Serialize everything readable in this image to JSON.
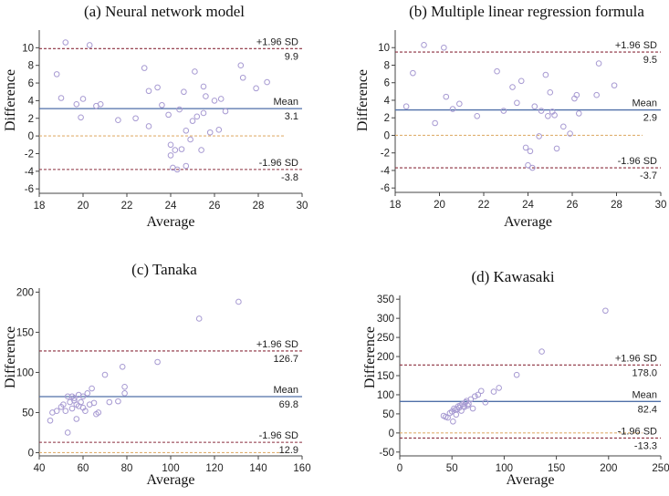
{
  "colors": {
    "mean_line": "#4f6fa8",
    "sd_line": "#8b2f3f",
    "zero_line": "#e0b070",
    "points": "#a79ad2",
    "axis": "#444444"
  },
  "chart_data": [
    {
      "type": "scatter",
      "title": "(a) Neural network model",
      "xlabel": "Average",
      "ylabel": "Difference",
      "xlim": [
        18,
        30
      ],
      "ylim": [
        -6.5,
        12
      ],
      "xticks": [
        18,
        20,
        22,
        24,
        26,
        28,
        30
      ],
      "yticks": [
        -6,
        -4,
        -2,
        0,
        2,
        4,
        6,
        8,
        10
      ],
      "mean": 3.1,
      "upper": 9.9,
      "lower": -3.8,
      "labels": {
        "upper": "+1.96 SD",
        "upper_val": "9.9",
        "mean": "Mean",
        "mean_val": "3.1",
        "lower": "-1.96 SD",
        "lower_val": "-3.8"
      },
      "points": [
        [
          19.2,
          10.6
        ],
        [
          18.8,
          7.0
        ],
        [
          19.0,
          4.3
        ],
        [
          19.7,
          3.6
        ],
        [
          19.9,
          2.1
        ],
        [
          20.0,
          4.2
        ],
        [
          20.3,
          10.3
        ],
        [
          20.6,
          3.4
        ],
        [
          20.8,
          3.6
        ],
        [
          21.6,
          1.8
        ],
        [
          22.4,
          2.0
        ],
        [
          22.8,
          7.7
        ],
        [
          23.0,
          5.1
        ],
        [
          23.0,
          1.1
        ],
        [
          23.4,
          5.5
        ],
        [
          23.6,
          3.5
        ],
        [
          23.9,
          2.4
        ],
        [
          24.0,
          -1.0
        ],
        [
          24.0,
          -2.2
        ],
        [
          24.1,
          -3.6
        ],
        [
          24.2,
          -1.6
        ],
        [
          24.3,
          -3.8
        ],
        [
          24.4,
          3.0
        ],
        [
          24.5,
          -1.5
        ],
        [
          24.6,
          5.0
        ],
        [
          24.7,
          -3.4
        ],
        [
          24.7,
          0.6
        ],
        [
          24.9,
          -0.4
        ],
        [
          25.0,
          1.7
        ],
        [
          25.1,
          7.3
        ],
        [
          25.2,
          2.2
        ],
        [
          25.4,
          -1.6
        ],
        [
          25.5,
          5.6
        ],
        [
          25.6,
          4.5
        ],
        [
          25.8,
          0.4
        ],
        [
          26.0,
          4.0
        ],
        [
          26.3,
          4.2
        ],
        [
          26.5,
          2.8
        ],
        [
          27.2,
          8.0
        ],
        [
          27.3,
          6.6
        ],
        [
          27.9,
          5.4
        ],
        [
          28.4,
          6.1
        ],
        [
          26.2,
          0.7
        ],
        [
          25.5,
          2.6
        ]
      ]
    },
    {
      "type": "scatter",
      "title": "(b) Multiple linear regression formula",
      "xlabel": "Average",
      "ylabel": "Difference",
      "xlim": [
        18,
        30
      ],
      "ylim": [
        -6.5,
        12
      ],
      "xticks": [
        18,
        20,
        22,
        24,
        26,
        28,
        30
      ],
      "yticks": [
        -6,
        -4,
        -2,
        0,
        2,
        4,
        6,
        8,
        10
      ],
      "mean": 2.9,
      "upper": 9.5,
      "lower": -3.7,
      "labels": {
        "upper": "+1.96 SD",
        "upper_val": "9.5",
        "mean": "Mean",
        "mean_val": "2.9",
        "lower": "-1.96 SD",
        "lower_val": "-3.7"
      },
      "points": [
        [
          18.5,
          3.3
        ],
        [
          18.8,
          7.1
        ],
        [
          19.3,
          10.3
        ],
        [
          19.8,
          1.4
        ],
        [
          20.2,
          10.0
        ],
        [
          20.3,
          4.4
        ],
        [
          20.6,
          3.0
        ],
        [
          20.9,
          3.6
        ],
        [
          21.7,
          2.2
        ],
        [
          22.6,
          7.3
        ],
        [
          22.9,
          2.8
        ],
        [
          23.3,
          5.5
        ],
        [
          23.5,
          3.7
        ],
        [
          23.7,
          6.2
        ],
        [
          23.9,
          -1.4
        ],
        [
          24.0,
          -3.4
        ],
        [
          24.1,
          -1.8
        ],
        [
          24.2,
          -3.7
        ],
        [
          24.3,
          3.3
        ],
        [
          24.5,
          -0.1
        ],
        [
          24.6,
          2.8
        ],
        [
          24.8,
          6.9
        ],
        [
          24.9,
          2.2
        ],
        [
          25.0,
          4.9
        ],
        [
          25.1,
          2.7
        ],
        [
          25.3,
          -1.5
        ],
        [
          25.6,
          1.0
        ],
        [
          25.9,
          0.2
        ],
        [
          26.2,
          4.6
        ],
        [
          26.3,
          2.5
        ],
        [
          27.2,
          8.2
        ],
        [
          27.1,
          4.6
        ],
        [
          27.9,
          5.7
        ],
        [
          26.1,
          4.2
        ],
        [
          25.2,
          2.3
        ]
      ]
    },
    {
      "type": "scatter",
      "title": "(c) Tanaka",
      "xlabel": "Average",
      "ylabel": "Difference",
      "xlim": [
        40,
        160
      ],
      "ylim": [
        -4,
        205
      ],
      "xticks": [
        40,
        60,
        80,
        100,
        120,
        140,
        160
      ],
      "yticks": [
        0,
        50,
        100,
        150,
        200
      ],
      "mean": 69.8,
      "upper": 126.7,
      "lower": 12.9,
      "labels": {
        "upper": "+1.96 SD",
        "upper_val": "126.7",
        "mean": "Mean",
        "mean_val": "69.8",
        "lower": "-1.96 SD",
        "lower_val": "12.9"
      },
      "points": [
        [
          45,
          40
        ],
        [
          46,
          50
        ],
        [
          48,
          52
        ],
        [
          50,
          57
        ],
        [
          51,
          60
        ],
        [
          52,
          52
        ],
        [
          53,
          70
        ],
        [
          53,
          25
        ],
        [
          54,
          63
        ],
        [
          55,
          55
        ],
        [
          55,
          70
        ],
        [
          56,
          65
        ],
        [
          57,
          60
        ],
        [
          57,
          42
        ],
        [
          58,
          72
        ],
        [
          59,
          63
        ],
        [
          60,
          70
        ],
        [
          60,
          56
        ],
        [
          61,
          52
        ],
        [
          62,
          74
        ],
        [
          63,
          60
        ],
        [
          64,
          80
        ],
        [
          65,
          62
        ],
        [
          66,
          48
        ],
        [
          67,
          50
        ],
        [
          70,
          97
        ],
        [
          72,
          63
        ],
        [
          76,
          64
        ],
        [
          78,
          107
        ],
        [
          79,
          82
        ],
        [
          79,
          74
        ],
        [
          94,
          113
        ],
        [
          113,
          167
        ],
        [
          131,
          188
        ],
        [
          56,
          68
        ],
        [
          58,
          58
        ]
      ]
    },
    {
      "type": "scatter",
      "title": "(d) Kawasaki",
      "xlabel": "Average",
      "ylabel": "Difference",
      "xlim": [
        0,
        250
      ],
      "ylim": [
        -60,
        360
      ],
      "xticks": [
        0,
        50,
        100,
        150,
        200,
        250
      ],
      "yticks": [
        -50,
        0,
        50,
        100,
        150,
        200,
        250,
        300,
        350
      ],
      "mean": 82.4,
      "upper": 178.0,
      "lower": -13.3,
      "labels": {
        "upper": "+1.96 SD",
        "upper_val": "178.0",
        "mean": "Mean",
        "mean_val": "82.4",
        "lower": "-1.96 SD",
        "lower_val": "-13.3"
      },
      "points": [
        [
          42,
          45
        ],
        [
          44,
          42
        ],
        [
          46,
          40
        ],
        [
          48,
          52
        ],
        [
          50,
          56
        ],
        [
          51,
          30
        ],
        [
          52,
          64
        ],
        [
          53,
          60
        ],
        [
          54,
          48
        ],
        [
          55,
          62
        ],
        [
          56,
          70
        ],
        [
          57,
          66
        ],
        [
          58,
          72
        ],
        [
          59,
          58
        ],
        [
          60,
          75
        ],
        [
          62,
          68
        ],
        [
          63,
          80
        ],
        [
          64,
          84
        ],
        [
          66,
          76
        ],
        [
          68,
          88
        ],
        [
          70,
          64
        ],
        [
          72,
          96
        ],
        [
          75,
          100
        ],
        [
          78,
          110
        ],
        [
          82,
          80
        ],
        [
          90,
          108
        ],
        [
          95,
          118
        ],
        [
          112,
          152
        ],
        [
          136,
          213
        ],
        [
          197,
          320
        ],
        [
          61,
          70
        ],
        [
          65,
          72
        ]
      ]
    }
  ]
}
